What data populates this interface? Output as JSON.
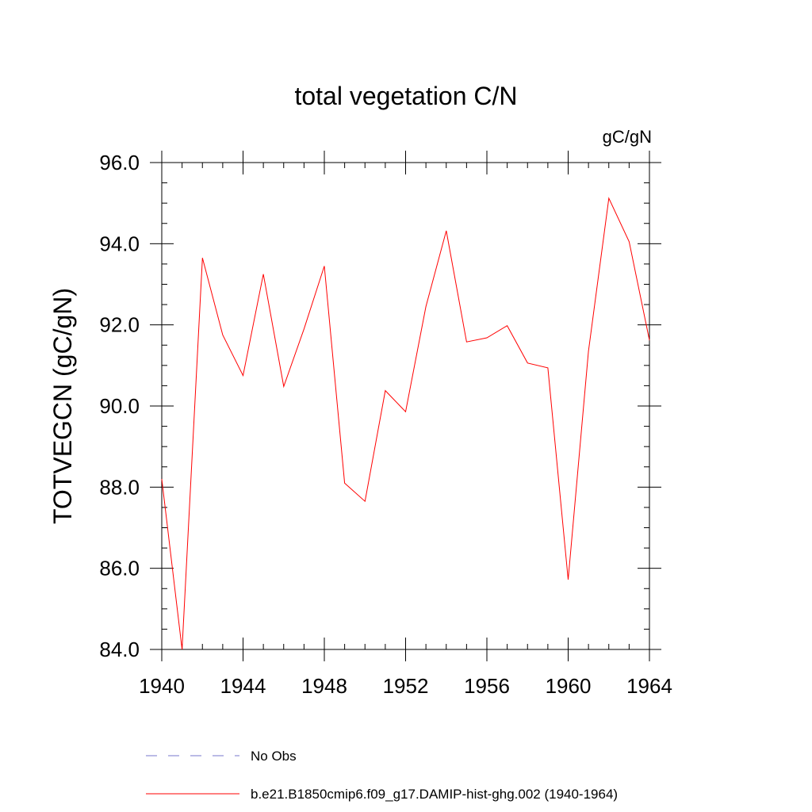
{
  "chart_data": {
    "type": "line",
    "title": "total vegetation C/N",
    "units_label": "gC/gN",
    "ylabel": "TOTVEGCN  (gC/gN)",
    "xlabel": "",
    "xlim": [
      1940,
      1964
    ],
    "ylim": [
      84.0,
      96.0
    ],
    "x_tick_labels": [
      "1940",
      "1944",
      "1948",
      "1952",
      "1956",
      "1960",
      "1964"
    ],
    "y_tick_labels": [
      "84.0",
      "86.0",
      "88.0",
      "90.0",
      "92.0",
      "94.0",
      "96.0"
    ],
    "grid": false,
    "legend_position": "bottom",
    "series": [
      {
        "name": "b.e21.B1850cmip6.f09_g17.DAMIP-hist-ghg.002 (1940-1964)",
        "color": "#ff0000",
        "style": "solid",
        "x": [
          1940,
          1941,
          1942,
          1943,
          1944,
          1945,
          1946,
          1947,
          1948,
          1949,
          1950,
          1951,
          1952,
          1953,
          1954,
          1955,
          1956,
          1957,
          1958,
          1959,
          1960,
          1961,
          1962,
          1963,
          1964
        ],
        "values": [
          88.2,
          84.0,
          93.65,
          91.75,
          90.75,
          93.25,
          90.48,
          91.9,
          93.45,
          88.1,
          87.65,
          90.38,
          89.86,
          92.45,
          94.32,
          91.58,
          91.68,
          91.98,
          91.06,
          90.94,
          85.72,
          91.35,
          95.12,
          94.05,
          91.62
        ]
      }
    ],
    "legend": [
      {
        "label": "No Obs",
        "color": "#7777cc",
        "style": "dashed"
      },
      {
        "label": "b.e21.B1850cmip6.f09_g17.DAMIP-hist-ghg.002 (1940-1964)",
        "color": "#ff0000",
        "style": "solid"
      }
    ]
  }
}
